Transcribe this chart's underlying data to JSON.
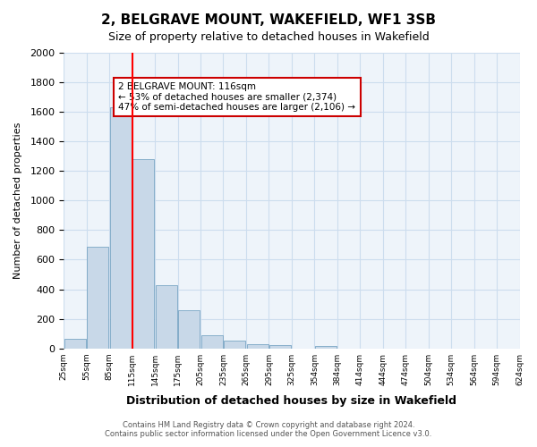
{
  "title": "2, BELGRAVE MOUNT, WAKEFIELD, WF1 3SB",
  "subtitle": "Size of property relative to detached houses in Wakefield",
  "xlabel": "Distribution of detached houses by size in Wakefield",
  "ylabel": "Number of detached properties",
  "bar_values": [
    65,
    690,
    1630,
    1280,
    430,
    255,
    90,
    55,
    30,
    20,
    0,
    15,
    0,
    0,
    0,
    0,
    0,
    0,
    0,
    0
  ],
  "bin_labels": [
    "25sqm",
    "55sqm",
    "85sqm",
    "115sqm",
    "145sqm",
    "175sqm",
    "205sqm",
    "235sqm",
    "265sqm",
    "295sqm",
    "325sqm",
    "354sqm",
    "384sqm",
    "414sqm",
    "444sqm",
    "474sqm",
    "504sqm",
    "534sqm",
    "564sqm",
    "594sqm",
    "624sqm"
  ],
  "bar_color": "#c8d8e8",
  "bar_edge_color": "#6699bb",
  "red_line_x": 3,
  "property_size": 116,
  "annotation_title": "2 BELGRAVE MOUNT: 116sqm",
  "annotation_line1": "← 53% of detached houses are smaller (2,374)",
  "annotation_line2": "47% of semi-detached houses are larger (2,106) →",
  "annotation_box_color": "#ffffff",
  "annotation_box_edge": "#cc0000",
  "ylim": [
    0,
    2000
  ],
  "yticks": [
    0,
    200,
    400,
    600,
    800,
    1000,
    1200,
    1400,
    1600,
    1800,
    2000
  ],
  "grid_color": "#ccddee",
  "background_color": "#eef4fa",
  "footer_line1": "Contains HM Land Registry data © Crown copyright and database right 2024.",
  "footer_line2": "Contains public sector information licensed under the Open Government Licence v3.0."
}
